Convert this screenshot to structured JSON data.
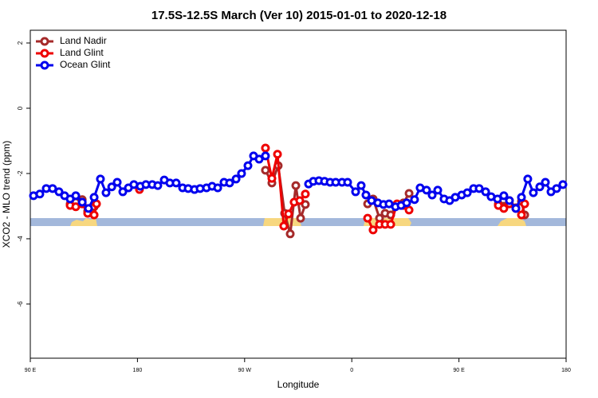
{
  "chart_data": {
    "type": "line",
    "title": "17.5S-12.5S March (Ver 10)   2015-01-01 to 2020-12-18",
    "xlabel": "Longitude",
    "ylabel": "XCO2 - MLO trend (ppm)",
    "xlim": [
      90,
      540
    ],
    "xticks": [
      {
        "value": 90,
        "label": "90 E"
      },
      {
        "value": 180,
        "label": "180"
      },
      {
        "value": 270,
        "label": "90 W"
      },
      {
        "value": 360,
        "label": "0"
      },
      {
        "value": 450,
        "label": "90 E"
      },
      {
        "value": 540,
        "label": "180"
      }
    ],
    "ylim": [
      -7.66,
      2.39
    ],
    "yticks": [
      2,
      0,
      -2,
      -4,
      -6
    ],
    "legend": "top-left",
    "series": [
      {
        "name": "Land Nadir",
        "color": "#a52a2a",
        "x": [
          123.5,
          128.2,
          133.6,
          138.2,
          143.6,
          null,
          287.5,
          292.9,
          298.2,
          303.6,
          308.3,
          313.0,
          317.0,
          321.0,
          null,
          373.3,
          377.9,
          383.3,
          388.0,
          392.7,
          398.0,
          403.4,
          408.1,
          null,
          483.1,
          487.7,
          492.4,
          497.8,
          502.5,
          505.2
        ],
        "values": [
          -2.93,
          -2.88,
          -2.8,
          -3.15,
          -3.02,
          null,
          -1.9,
          -2.29,
          -1.76,
          -3.22,
          -3.85,
          -2.37,
          -3.37,
          -2.95,
          null,
          -2.93,
          -2.78,
          -3.37,
          -3.22,
          -3.27,
          -2.95,
          -2.9,
          -2.61,
          null,
          -2.93,
          -3.0,
          -2.83,
          -3.05,
          -2.85,
          -3.27
        ]
      },
      {
        "name": "Land Glint",
        "color": "#ee0000",
        "x": [
          123.5,
          128.2,
          133.6,
          138.2,
          143.6,
          145.6,
          null,
          181.7,
          null,
          287.5,
          292.9,
          297.6,
          302.9,
          306.9,
          311.6,
          316.3,
          321.0,
          null,
          373.3,
          377.9,
          383.3,
          388.0,
          392.7,
          398.0,
          403.4,
          408.1,
          null,
          483.1,
          487.7,
          492.4,
          497.8,
          502.5,
          505.2
        ],
        "values": [
          -2.98,
          -3.02,
          -2.93,
          -3.22,
          -3.27,
          -2.93,
          null,
          -2.49,
          null,
          -1.22,
          -2.15,
          -1.41,
          -3.61,
          -3.24,
          -2.88,
          -2.83,
          -2.63,
          null,
          -3.37,
          -3.73,
          -3.56,
          -3.56,
          -3.56,
          -2.93,
          -2.98,
          -3.12,
          null,
          -2.98,
          -3.07,
          -2.93,
          -3.07,
          -3.27,
          -2.93
        ]
      },
      {
        "name": "Ocean Glint",
        "color": "#0000ee",
        "x": [
          92.7,
          98.0,
          103.4,
          108.7,
          114.1,
          118.8,
          123.5,
          128.2,
          133.6,
          138.9,
          143.6,
          148.9,
          153.6,
          158.4,
          163.0,
          167.7,
          172.4,
          177.0,
          182.4,
          187.1,
          192.4,
          197.1,
          202.5,
          207.2,
          212.5,
          217.9,
          222.6,
          227.9,
          232.6,
          238.0,
          242.7,
          247.4,
          252.7,
          257.4,
          262.8,
          267.4,
          272.8,
          277.5,
          282.2,
          287.5,
          null,
          323.7,
          327.7,
          332.4,
          337.1,
          341.8,
          346.5,
          351.8,
          356.5,
          363.2,
          367.9,
          371.9,
          376.6,
          381.9,
          386.6,
          391.3,
          396.7,
          401.4,
          406.1,
          412.7,
          417.4,
          422.8,
          427.5,
          432.2,
          437.5,
          442.2,
          446.9,
          452.3,
          457.0,
          462.3,
          467.0,
          472.4,
          477.0,
          482.4,
          487.7,
          492.4,
          497.8,
          502.5,
          507.8,
          512.5,
          517.9,
          522.6,
          527.3,
          532.0,
          537.3
        ],
        "values": [
          -2.68,
          -2.63,
          -2.46,
          -2.46,
          -2.56,
          -2.68,
          -2.78,
          -2.68,
          -2.88,
          -3.07,
          -2.73,
          -2.17,
          -2.59,
          -2.41,
          -2.27,
          -2.56,
          -2.44,
          -2.34,
          -2.39,
          -2.34,
          -2.34,
          -2.37,
          -2.2,
          -2.29,
          -2.29,
          -2.44,
          -2.46,
          -2.49,
          -2.46,
          -2.44,
          -2.39,
          -2.44,
          -2.27,
          -2.29,
          -2.17,
          -2.0,
          -1.76,
          -1.46,
          -1.56,
          -1.46,
          null,
          -2.32,
          -2.24,
          -2.22,
          -2.24,
          -2.27,
          -2.27,
          -2.27,
          -2.27,
          -2.56,
          -2.37,
          -2.66,
          -2.83,
          -2.9,
          -2.95,
          -2.93,
          -3.02,
          -2.98,
          -2.9,
          -2.8,
          -2.44,
          -2.51,
          -2.66,
          -2.51,
          -2.78,
          -2.83,
          -2.73,
          -2.66,
          -2.59,
          -2.46,
          -2.46,
          -2.56,
          -2.71,
          -2.78,
          -2.68,
          -2.83,
          -3.07,
          -2.73,
          -2.17,
          -2.59,
          -2.41,
          -2.27,
          -2.56,
          -2.46,
          -2.34
        ]
      }
    ]
  }
}
